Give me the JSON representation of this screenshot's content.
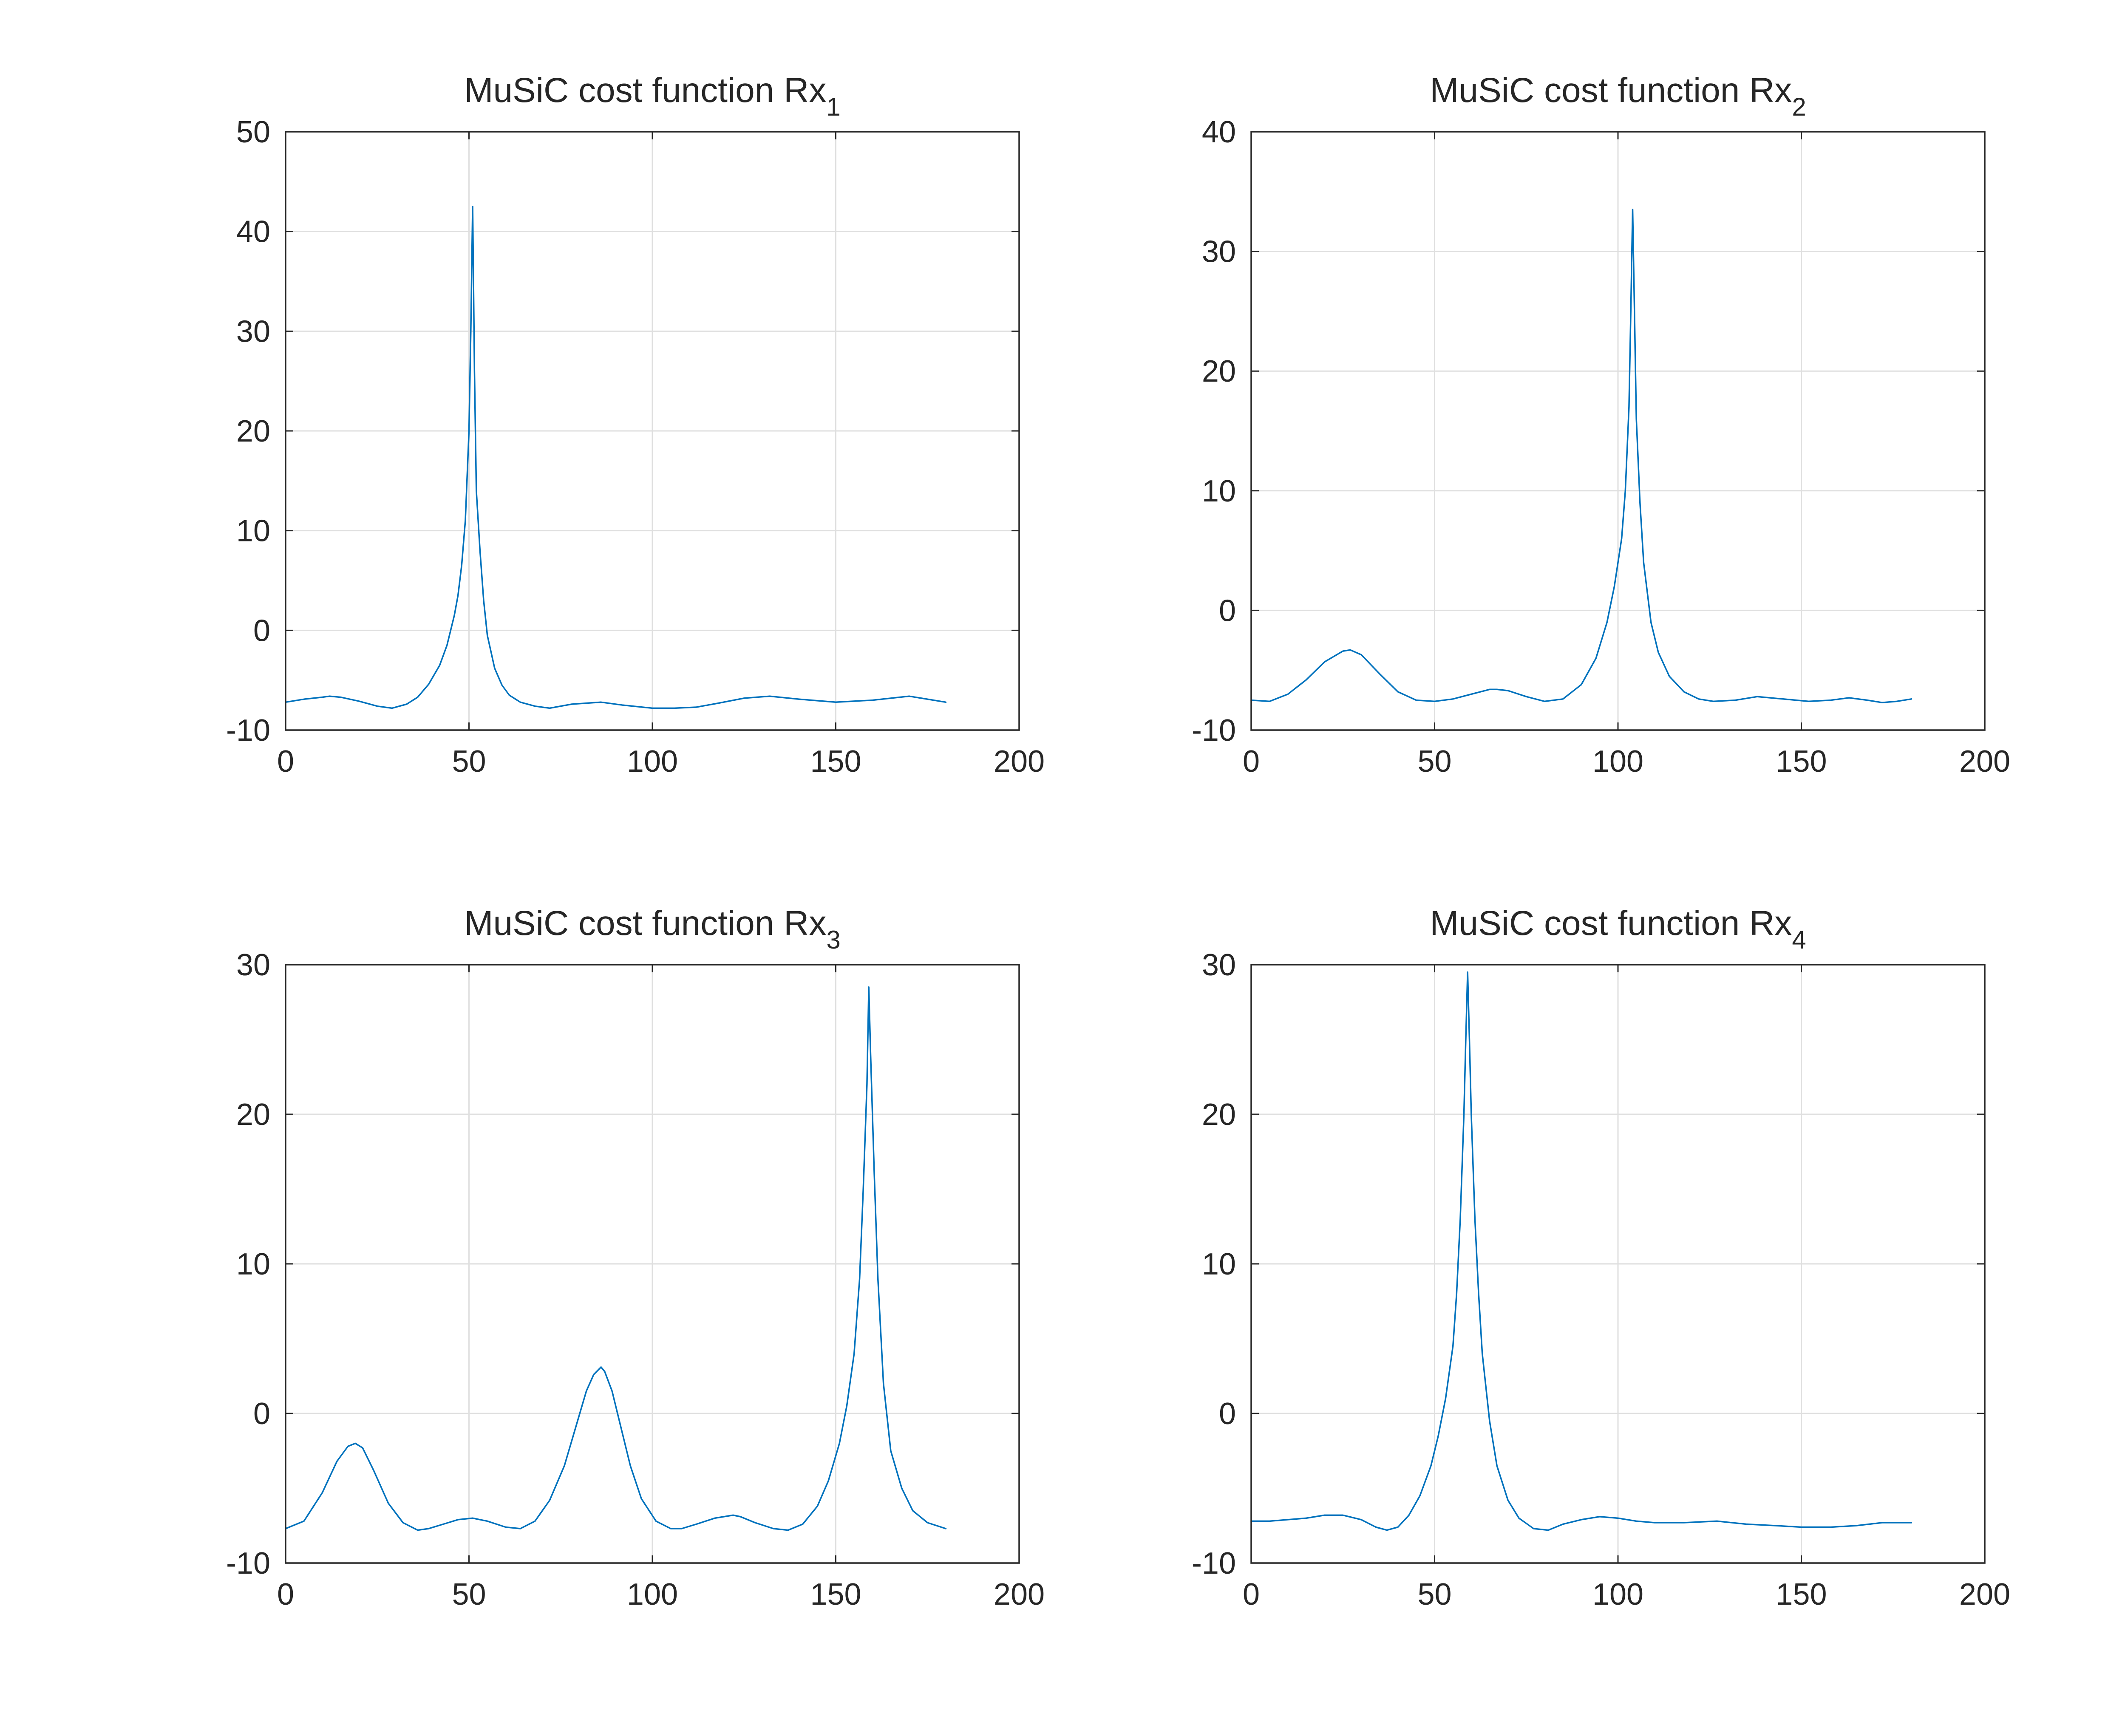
{
  "colors": {
    "series": "#0072BD"
  },
  "chart_data": [
    {
      "type": "line",
      "title": "MuSiC cost function Rx",
      "title_subscript": "1",
      "xlim": [
        0,
        200
      ],
      "ylim": [
        -10,
        50
      ],
      "xticks": [
        0,
        50,
        100,
        150,
        200
      ],
      "yticks": [
        -10,
        0,
        10,
        20,
        30,
        40,
        50
      ],
      "grid": true,
      "series": [
        {
          "x": [
            0,
            5,
            10,
            12,
            15,
            20,
            25,
            29,
            33,
            36,
            39,
            42,
            44,
            46,
            47,
            48,
            49,
            50,
            50.5,
            51,
            51.5,
            52,
            53,
            54,
            55,
            57,
            59,
            61,
            64,
            68,
            72,
            78,
            86,
            92,
            100,
            106,
            112,
            118,
            125,
            132,
            140,
            150,
            160,
            170,
            180
          ],
          "y": [
            -7.2,
            -6.9,
            -6.7,
            -6.6,
            -6.7,
            -7.1,
            -7.6,
            -7.8,
            -7.4,
            -6.7,
            -5.4,
            -3.5,
            -1.5,
            1.5,
            3.5,
            6.5,
            11,
            20,
            30,
            42.5,
            26,
            14,
            8,
            3,
            -0.5,
            -3.8,
            -5.5,
            -6.5,
            -7.2,
            -7.6,
            -7.8,
            -7.4,
            -7.2,
            -7.5,
            -7.8,
            -7.8,
            -7.7,
            -7.3,
            -6.8,
            -6.6,
            -6.9,
            -7.2,
            -7.0,
            -6.6,
            -7.2
          ]
        }
      ]
    },
    {
      "type": "line",
      "title": "MuSiC cost function Rx",
      "title_subscript": "2",
      "xlim": [
        0,
        200
      ],
      "ylim": [
        -10,
        40
      ],
      "xticks": [
        0,
        50,
        100,
        150,
        200
      ],
      "yticks": [
        -10,
        0,
        10,
        20,
        30,
        40
      ],
      "grid": true,
      "series": [
        {
          "x": [
            0,
            5,
            10,
            15,
            20,
            25,
            27,
            30,
            35,
            40,
            45,
            50,
            55,
            60,
            65,
            67,
            70,
            75,
            80,
            85,
            90,
            94,
            97,
            99,
            101,
            102,
            103,
            103.5,
            104,
            104.5,
            105,
            106,
            107,
            109,
            111,
            114,
            118,
            122,
            126,
            132,
            138,
            145,
            152,
            158,
            163,
            168,
            172,
            176,
            180
          ],
          "y": [
            -7.5,
            -7.6,
            -7.0,
            -5.8,
            -4.3,
            -3.4,
            -3.3,
            -3.7,
            -5.3,
            -6.8,
            -7.5,
            -7.6,
            -7.4,
            -7.0,
            -6.6,
            -6.6,
            -6.7,
            -7.2,
            -7.6,
            -7.4,
            -6.2,
            -4.0,
            -1.0,
            2.0,
            6.0,
            10.0,
            17.0,
            25.0,
            33.5,
            25.0,
            16.0,
            9.0,
            4.0,
            -1.0,
            -3.5,
            -5.5,
            -6.8,
            -7.4,
            -7.6,
            -7.5,
            -7.2,
            -7.4,
            -7.6,
            -7.5,
            -7.3,
            -7.5,
            -7.7,
            -7.6,
            -7.4
          ]
        }
      ]
    },
    {
      "type": "line",
      "title": "MuSiC cost function Rx",
      "title_subscript": "3",
      "xlim": [
        0,
        200
      ],
      "ylim": [
        -10,
        30
      ],
      "xticks": [
        0,
        50,
        100,
        150,
        200
      ],
      "yticks": [
        -10,
        0,
        10,
        20,
        30
      ],
      "grid": true,
      "series": [
        {
          "x": [
            0,
            5,
            10,
            14,
            17,
            19,
            21,
            24,
            28,
            32,
            36,
            39,
            43,
            47,
            51,
            55,
            60,
            64,
            68,
            72,
            76,
            79,
            82,
            84,
            86,
            87,
            89,
            91,
            94,
            97,
            101,
            105,
            108,
            112,
            117,
            122,
            124,
            128,
            133,
            137,
            141,
            145,
            148,
            151,
            153,
            155,
            156.5,
            157.5,
            158.5,
            159,
            159.5,
            160.5,
            161.5,
            163,
            165,
            168,
            171,
            175,
            180
          ],
          "y": [
            -7.7,
            -7.2,
            -5.3,
            -3.2,
            -2.2,
            -2.0,
            -2.3,
            -3.8,
            -6.0,
            -7.3,
            -7.8,
            -7.7,
            -7.4,
            -7.1,
            -7.0,
            -7.2,
            -7.6,
            -7.7,
            -7.2,
            -5.8,
            -3.5,
            -1.0,
            1.5,
            2.6,
            3.1,
            2.8,
            1.5,
            -0.5,
            -3.5,
            -5.7,
            -7.2,
            -7.7,
            -7.7,
            -7.4,
            -7.0,
            -6.8,
            -6.9,
            -7.3,
            -7.7,
            -7.8,
            -7.4,
            -6.2,
            -4.5,
            -2.0,
            0.5,
            4.0,
            9.0,
            15.0,
            22.0,
            28.5,
            24.0,
            16.0,
            9.0,
            2.0,
            -2.5,
            -5.0,
            -6.5,
            -7.3,
            -7.7
          ]
        }
      ]
    },
    {
      "type": "line",
      "title": "MuSiC cost function Rx",
      "title_subscript": "4",
      "xlim": [
        0,
        200
      ],
      "ylim": [
        -10,
        30
      ],
      "xticks": [
        0,
        50,
        100,
        150,
        200
      ],
      "yticks": [
        -10,
        0,
        10,
        20,
        30
      ],
      "grid": true,
      "series": [
        {
          "x": [
            0,
            5,
            10,
            15,
            20,
            25,
            30,
            34,
            37,
            40,
            43,
            46,
            49,
            51,
            53,
            55,
            56,
            57,
            58,
            58.5,
            59,
            59.5,
            60,
            61,
            62,
            63,
            65,
            67,
            70,
            73,
            77,
            81,
            85,
            90,
            95,
            100,
            105,
            110,
            118,
            127,
            135,
            143,
            150,
            158,
            165,
            172,
            180
          ],
          "y": [
            -7.2,
            -7.2,
            -7.1,
            -7.0,
            -6.8,
            -6.8,
            -7.1,
            -7.6,
            -7.8,
            -7.6,
            -6.8,
            -5.5,
            -3.5,
            -1.5,
            1.0,
            4.5,
            8.0,
            13.0,
            20.0,
            25.0,
            29.5,
            25.0,
            20.0,
            13.0,
            8.0,
            4.0,
            -0.5,
            -3.5,
            -5.8,
            -7.0,
            -7.7,
            -7.8,
            -7.4,
            -7.1,
            -6.9,
            -7.0,
            -7.2,
            -7.3,
            -7.3,
            -7.2,
            -7.4,
            -7.5,
            -7.6,
            -7.6,
            -7.5,
            -7.3,
            -7.3
          ]
        }
      ]
    }
  ]
}
